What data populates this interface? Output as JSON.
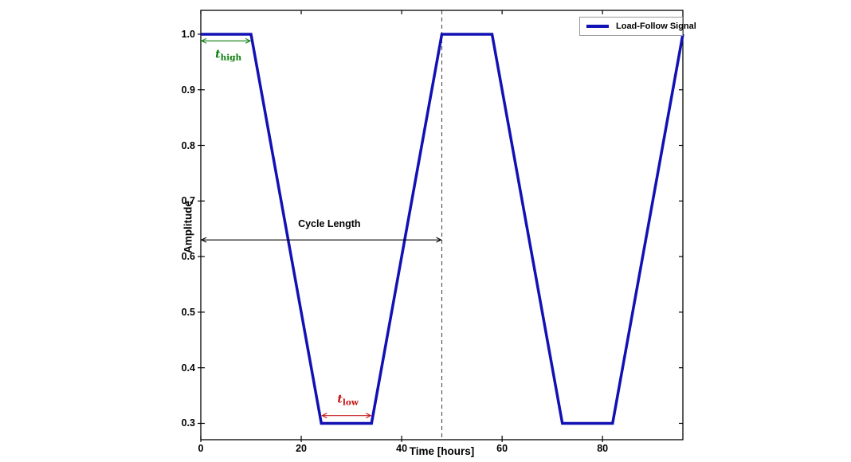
{
  "figure": {
    "background": "#ffffff",
    "frame_color": "#000000",
    "tick_color": "#000000"
  },
  "chart_data": {
    "type": "line",
    "title": "",
    "xlabel": "Time [hours]",
    "ylabel": "Amplitude",
    "xlim": [
      0,
      96
    ],
    "ylim": [
      0.2706,
      1.0429
    ],
    "xtick_values": [
      0,
      20,
      40,
      60,
      80
    ],
    "xtick_labels": [
      "0",
      "20",
      "40",
      "60",
      "80"
    ],
    "ytick_values": [
      0.3,
      0.4,
      0.5,
      0.6,
      0.7,
      0.8,
      0.9,
      1.0
    ],
    "ytick_labels": [
      "0.3",
      "0.4",
      "0.5",
      "0.6",
      "0.7",
      "0.8",
      "0.9",
      "1.0"
    ],
    "grid": false,
    "legend": {
      "position": "upper-right",
      "entries": [
        {
          "label": "Load-Follow Signal",
          "color": "#1111b4"
        }
      ]
    },
    "series": [
      {
        "name": "Load-Follow Signal",
        "color": "#1111b4",
        "line_width": 3.5,
        "x": [
          0,
          10,
          24,
          34,
          48,
          58,
          72,
          82,
          96
        ],
        "y": [
          1.0,
          1.0,
          0.3,
          0.3,
          1.0,
          1.0,
          0.3,
          0.3,
          1.0
        ]
      }
    ],
    "signal_params": {
      "amplitude_high": 1.0,
      "amplitude_low": 0.3,
      "t_high_hours": 10,
      "t_low_hours": 10,
      "ramp_hours": 14,
      "cycle_length_hours": 48
    },
    "reference_lines": [
      {
        "orientation": "vertical",
        "x": 48,
        "style": "dashed",
        "color": "#4a4a4a"
      }
    ],
    "annotations": [
      {
        "id": "t-high",
        "label_main": "t",
        "label_sub": "high",
        "color": "#0a7d0a",
        "arrow": {
          "x1": 0,
          "x2": 10,
          "y": 0.988
        },
        "text_pos": {
          "x": 5.5,
          "y": 0.963
        }
      },
      {
        "id": "t-low",
        "label_main": "t",
        "label_sub": "low",
        "color": "#c41414",
        "arrow": {
          "x1": 24,
          "x2": 34,
          "y": 0.314
        },
        "text_pos": {
          "x": 29.3,
          "y": 0.342
        }
      },
      {
        "id": "cycle-length",
        "label": "Cycle Length",
        "color": "#000000",
        "arrow": {
          "x1": 0,
          "x2": 48,
          "y": 0.63
        },
        "text_pos": {
          "x": 25.6,
          "y": 0.659
        }
      }
    ]
  }
}
